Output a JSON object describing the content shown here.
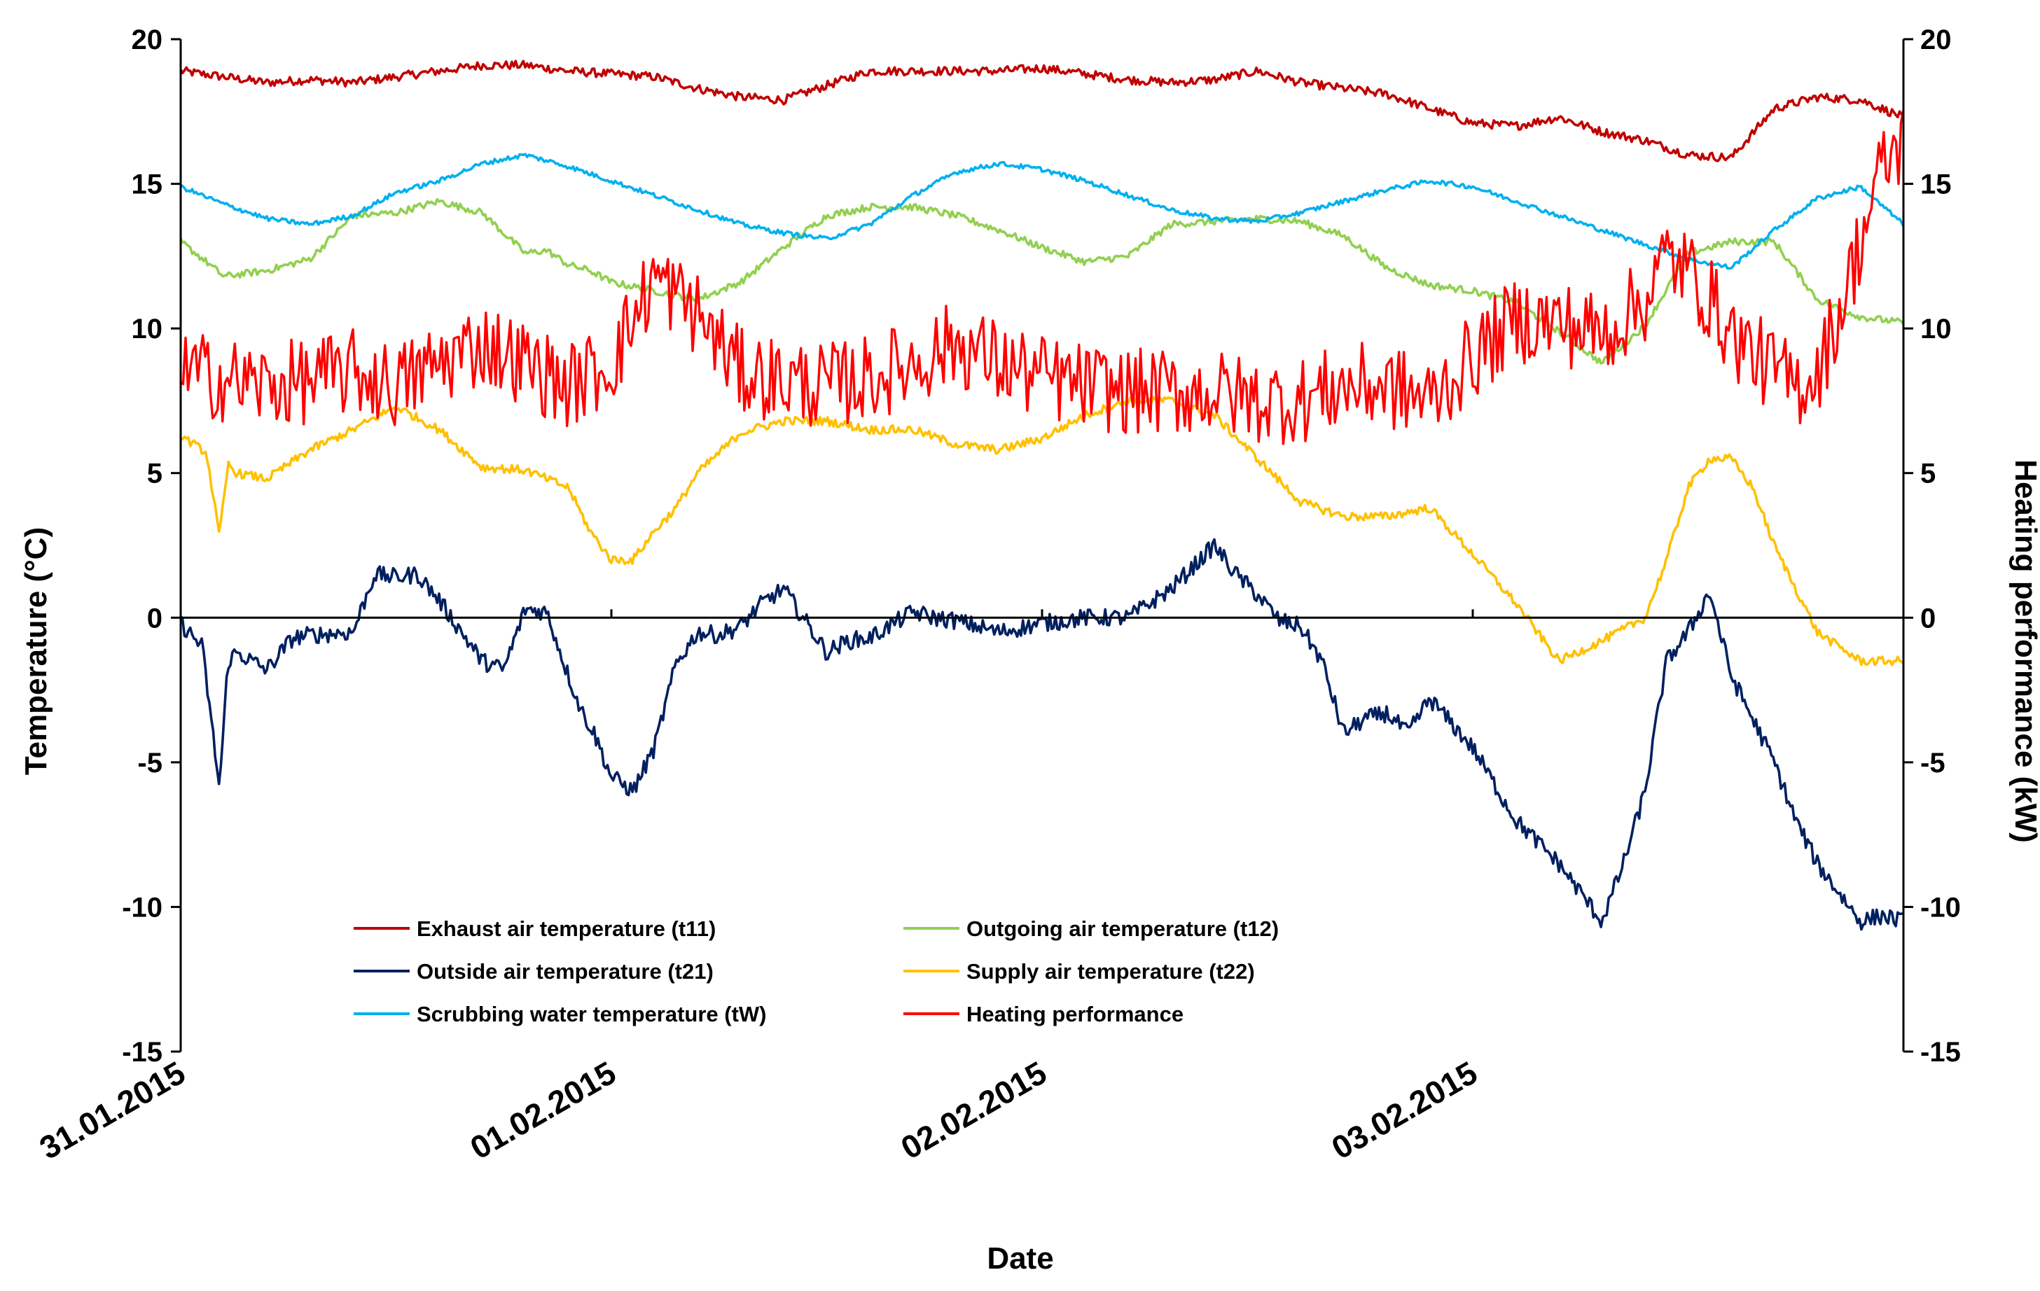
{
  "chart_data": {
    "type": "line",
    "title": "",
    "xlabel": "Date",
    "ylabel": "Temperature (°C)",
    "y2label": "Heating performance (kW)",
    "ylim": [
      -15,
      20
    ],
    "y2lim": [
      -15,
      20
    ],
    "yticks": [
      "20",
      "15",
      "10",
      "5",
      "0",
      "-5",
      "-10",
      "-15"
    ],
    "y2ticks": [
      "20",
      "15",
      "10",
      "5",
      "0",
      "-5",
      "-10",
      "-15"
    ],
    "xlim_days": [
      0,
      4
    ],
    "xtick_labels": [
      "31.01.2015",
      "01.02.2015",
      "02.02.2015",
      "03.02.2015"
    ],
    "legend_position": "lower-left",
    "series": [
      {
        "name": "Exhaust air temperature (t11)",
        "color": "#c00000",
        "axis": "left",
        "x": [
          0,
          0.1,
          0.2,
          0.3,
          0.4,
          0.5,
          0.6,
          0.7,
          0.8,
          0.9,
          1.0,
          1.1,
          1.2,
          1.3,
          1.4,
          1.5,
          1.6,
          1.7,
          1.8,
          1.9,
          2.0,
          2.1,
          2.2,
          2.3,
          2.4,
          2.5,
          2.6,
          2.7,
          2.8,
          2.9,
          3.0,
          3.1,
          3.2,
          3.3,
          3.4,
          3.5,
          3.6,
          3.7,
          3.8,
          3.9,
          4.0
        ],
        "y": [
          18.9,
          18.7,
          18.5,
          18.6,
          18.5,
          18.7,
          18.9,
          19.1,
          19.1,
          18.9,
          18.8,
          18.7,
          18.3,
          18.0,
          17.9,
          18.4,
          18.9,
          18.9,
          18.9,
          18.9,
          19.0,
          18.8,
          18.6,
          18.5,
          18.6,
          18.9,
          18.5,
          18.3,
          18.1,
          17.6,
          17.1,
          17.0,
          17.3,
          16.8,
          16.5,
          16.0,
          15.9,
          17.6,
          18.0,
          17.9,
          17.3
        ],
        "noise": 0.15
      },
      {
        "name": "Outgoing air temperature (t12)",
        "color": "#92d050",
        "axis": "left",
        "x": [
          0,
          0.06,
          0.1,
          0.2,
          0.3,
          0.4,
          0.5,
          0.6,
          0.7,
          0.8,
          0.85,
          0.9,
          0.95,
          1.0,
          1.1,
          1.2,
          1.3,
          1.4,
          1.5,
          1.6,
          1.7,
          1.8,
          1.9,
          2.0,
          2.1,
          2.2,
          2.3,
          2.4,
          2.5,
          2.6,
          2.7,
          2.8,
          2.9,
          3.0,
          3.1,
          3.2,
          3.3,
          3.4,
          3.5,
          3.6,
          3.7,
          3.8,
          3.9,
          4.0
        ],
        "y": [
          13.0,
          12.3,
          11.8,
          12.0,
          12.4,
          13.9,
          14.0,
          14.4,
          14.0,
          12.6,
          12.7,
          12.2,
          12.0,
          11.6,
          11.3,
          11.0,
          11.6,
          12.8,
          13.9,
          14.2,
          14.2,
          13.9,
          13.4,
          12.8,
          12.3,
          12.5,
          13.6,
          13.7,
          13.8,
          13.7,
          13.2,
          12.1,
          11.5,
          11.3,
          10.9,
          9.9,
          8.8,
          10.1,
          12.6,
          13.0,
          13.0,
          11.0,
          10.4,
          10.2
        ],
        "noise": 0.12
      },
      {
        "name": "Outside air temperature (t21)",
        "color": "#002060",
        "axis": "left",
        "x": [
          0,
          0.05,
          0.09,
          0.11,
          0.13,
          0.2,
          0.26,
          0.3,
          0.4,
          0.45,
          0.5,
          0.55,
          0.6,
          0.7,
          0.75,
          0.8,
          0.85,
          0.9,
          0.93,
          0.96,
          1.0,
          1.05,
          1.1,
          1.15,
          1.2,
          1.25,
          1.3,
          1.35,
          1.4,
          1.5,
          1.55,
          1.6,
          1.7,
          1.75,
          1.8,
          1.9,
          2.0,
          2.1,
          2.2,
          2.3,
          2.4,
          2.45,
          2.5,
          2.55,
          2.6,
          2.65,
          2.7,
          2.75,
          2.8,
          2.85,
          2.9,
          3.0,
          3.1,
          3.2,
          3.3,
          3.35,
          3.4,
          3.45,
          3.5,
          3.55,
          3.6,
          3.7,
          3.75,
          3.8,
          3.85,
          3.9,
          3.95,
          4.0
        ],
        "y": [
          -0.2,
          -1.0,
          -5.9,
          -1.5,
          -1.2,
          -1.8,
          -0.7,
          -0.6,
          -0.5,
          1.5,
          1.4,
          1.5,
          0.6,
          -1.5,
          -1.8,
          0.3,
          0.2,
          -2.0,
          -3.2,
          -4.0,
          -5.5,
          -6.0,
          -4.5,
          -1.6,
          -0.5,
          -0.6,
          -0.3,
          0.5,
          1.0,
          -1.2,
          -0.8,
          -0.7,
          0.2,
          0.0,
          -0.1,
          -0.5,
          -0.2,
          0.0,
          0.0,
          1.0,
          2.5,
          1.5,
          0.8,
          -0.1,
          -0.3,
          -1.5,
          -4.0,
          -3.5,
          -3.3,
          -4.0,
          -2.8,
          -4.5,
          -7.0,
          -8.5,
          -10.5,
          -8.5,
          -6.0,
          -1.5,
          -0.5,
          0.9,
          -2.0,
          -5.0,
          -7.0,
          -8.5,
          -9.5,
          -10.5,
          -10.3,
          -10.5
        ],
        "noise": 0.3
      },
      {
        "name": "Supply air temperature (t22)",
        "color": "#ffc000",
        "axis": "left",
        "x": [
          0,
          0.06,
          0.09,
          0.11,
          0.13,
          0.2,
          0.3,
          0.4,
          0.5,
          0.6,
          0.7,
          0.8,
          0.9,
          0.95,
          1.0,
          1.05,
          1.1,
          1.15,
          1.2,
          1.3,
          1.4,
          1.5,
          1.6,
          1.7,
          1.8,
          1.9,
          2.0,
          2.1,
          2.2,
          2.3,
          2.4,
          2.5,
          2.6,
          2.7,
          2.8,
          2.9,
          3.0,
          3.1,
          3.2,
          3.3,
          3.4,
          3.45,
          3.5,
          3.55,
          3.6,
          3.65,
          3.7,
          3.75,
          3.8,
          3.85,
          3.9,
          3.95,
          4.0
        ],
        "y": [
          6.3,
          5.7,
          2.8,
          5.3,
          5.0,
          4.8,
          5.8,
          6.5,
          7.3,
          6.5,
          5.2,
          5.1,
          4.5,
          3.0,
          2.0,
          2.0,
          3.0,
          3.8,
          5.0,
          6.4,
          6.8,
          6.8,
          6.5,
          6.5,
          6.0,
          5.8,
          6.2,
          7.0,
          7.5,
          7.5,
          7.0,
          5.5,
          4.0,
          3.5,
          3.5,
          3.8,
          2.2,
          0.5,
          -1.5,
          -0.8,
          0.0,
          2.0,
          4.5,
          5.5,
          5.5,
          4.5,
          2.5,
          1.0,
          -0.5,
          -1.0,
          -1.5,
          -1.5,
          -1.5
        ],
        "noise": 0.15
      },
      {
        "name": "Scrubbing water temperature (tW)",
        "color": "#00b0f0",
        "axis": "left",
        "x": [
          0,
          0.1,
          0.2,
          0.3,
          0.4,
          0.5,
          0.6,
          0.7,
          0.8,
          0.9,
          1.0,
          1.1,
          1.2,
          1.3,
          1.4,
          1.5,
          1.6,
          1.7,
          1.8,
          1.9,
          2.0,
          2.1,
          2.2,
          2.3,
          2.4,
          2.5,
          2.6,
          2.7,
          2.8,
          2.9,
          3.0,
          3.1,
          3.2,
          3.3,
          3.4,
          3.5,
          3.6,
          3.7,
          3.8,
          3.9,
          4.0
        ],
        "y": [
          14.9,
          14.3,
          13.8,
          13.6,
          13.9,
          14.7,
          15.1,
          15.7,
          16.0,
          15.6,
          15.1,
          14.6,
          14.1,
          13.6,
          13.3,
          13.1,
          13.6,
          14.6,
          15.4,
          15.7,
          15.5,
          15.1,
          14.6,
          14.1,
          13.8,
          13.7,
          14.0,
          14.4,
          14.8,
          15.1,
          14.9,
          14.4,
          13.9,
          13.4,
          12.9,
          12.4,
          12.1,
          13.4,
          14.5,
          14.9,
          13.6
        ],
        "noise": 0.08
      },
      {
        "name": "Heating performance",
        "color": "#ff0000",
        "axis": "right",
        "x": [
          0,
          0.2,
          0.3,
          0.4,
          0.5,
          0.6,
          0.7,
          0.8,
          0.9,
          1.0,
          1.1,
          1.2,
          1.3,
          1.4,
          1.5,
          1.6,
          1.7,
          1.8,
          1.9,
          2.0,
          2.1,
          2.2,
          2.3,
          2.4,
          2.5,
          2.6,
          2.7,
          2.8,
          2.9,
          3.0,
          3.1,
          3.2,
          3.3,
          3.4,
          3.45,
          3.5,
          3.55,
          3.6,
          3.7,
          3.75,
          3.8,
          3.85,
          3.9,
          3.95,
          4.0
        ],
        "y": [
          8.5,
          8.0,
          8.2,
          8.5,
          8.0,
          8.8,
          9.5,
          8.8,
          8.0,
          8.8,
          11.8,
          10.5,
          8.5,
          8.2,
          8.0,
          8.3,
          8.8,
          9.5,
          8.8,
          8.3,
          8.0,
          7.8,
          7.8,
          7.8,
          7.5,
          7.5,
          8.0,
          8.0,
          7.5,
          9.0,
          10.3,
          10.2,
          9.8,
          11.0,
          12.5,
          12.0,
          11.0,
          9.8,
          8.5,
          8.0,
          8.5,
          10.5,
          13.0,
          15.5,
          16.5
        ],
        "noise": 1.5
      }
    ]
  }
}
